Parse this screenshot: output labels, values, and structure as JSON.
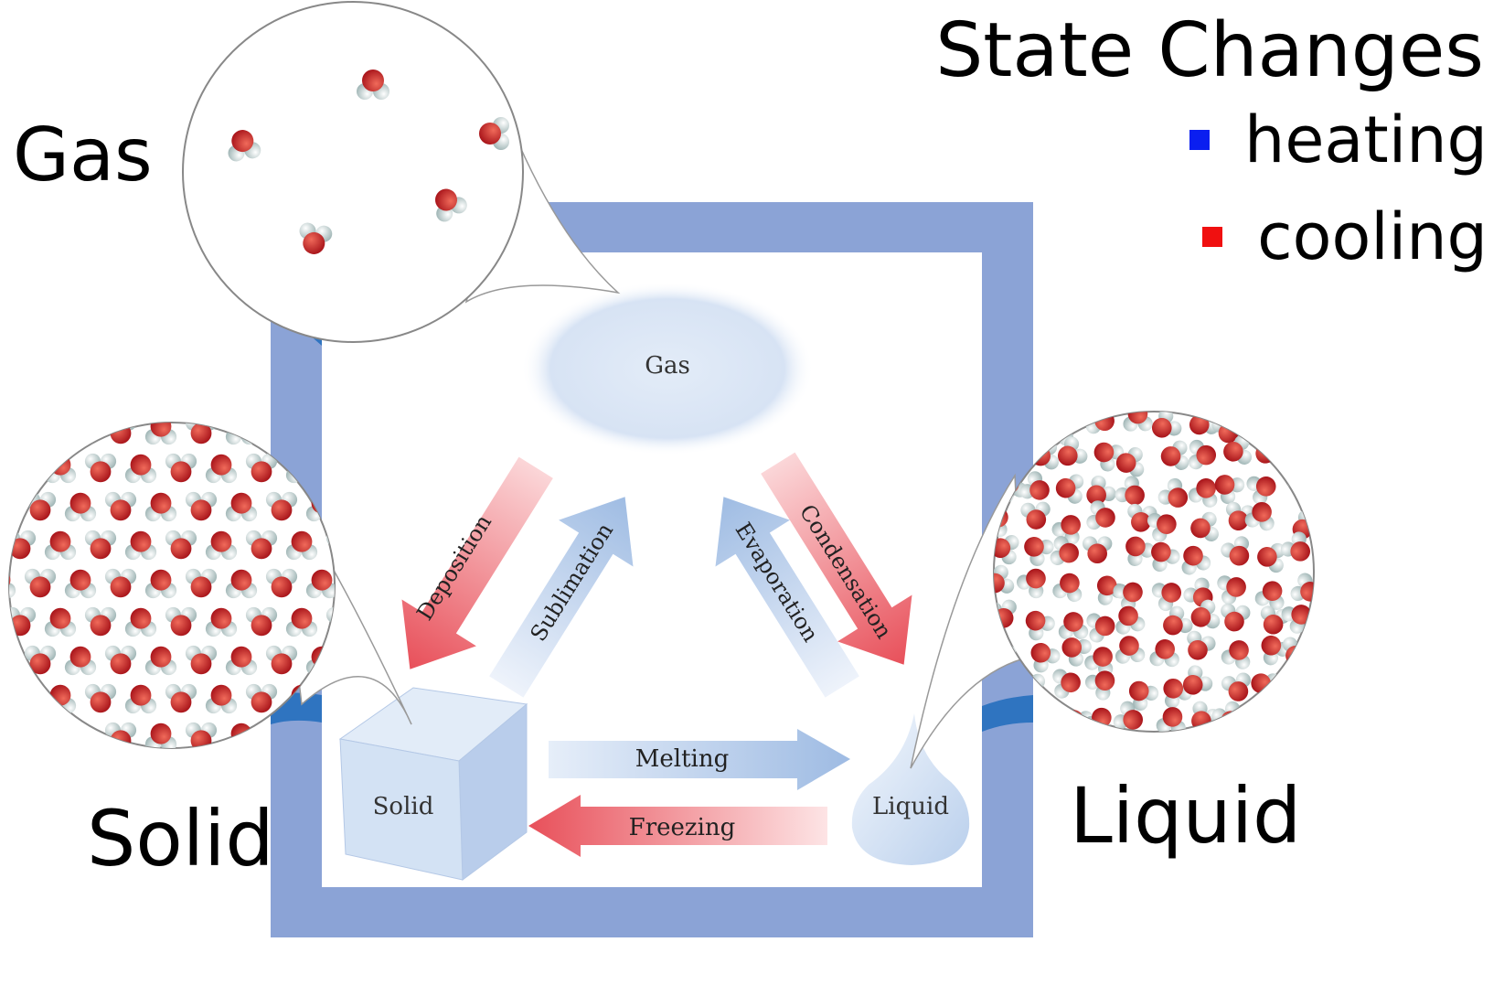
{
  "title": "State Changes",
  "legend": [
    {
      "label": "heating",
      "color": "#0a1ef0"
    },
    {
      "label": "cooling",
      "color": "#f01010"
    }
  ],
  "side_labels": {
    "gas": "Gas",
    "solid": "Solid",
    "liquid": "Liquid"
  },
  "diagram": {
    "states": {
      "gas": "Gas",
      "solid": "Solid",
      "liquid": "Liquid"
    },
    "transitions": [
      {
        "key": "deposition",
        "label": "Deposition",
        "kind": "cooling"
      },
      {
        "key": "sublimation",
        "label": "Sublimation",
        "kind": "heating"
      },
      {
        "key": "evaporation",
        "label": "Evaporation",
        "kind": "heating"
      },
      {
        "key": "condensation",
        "label": "Condensation",
        "kind": "cooling"
      },
      {
        "key": "melting",
        "label": "Melting",
        "kind": "heating"
      },
      {
        "key": "freezing",
        "label": "Freezing",
        "kind": "cooling"
      }
    ]
  },
  "colors": {
    "frame": "#8aa3d6",
    "frame_dark": "#2f74c0",
    "heating_arrow": "#a9c3e6",
    "cooling_arrow": "#e8505a",
    "oxygen": "#c81e1e",
    "hydrogen": "#d8e4e4"
  }
}
